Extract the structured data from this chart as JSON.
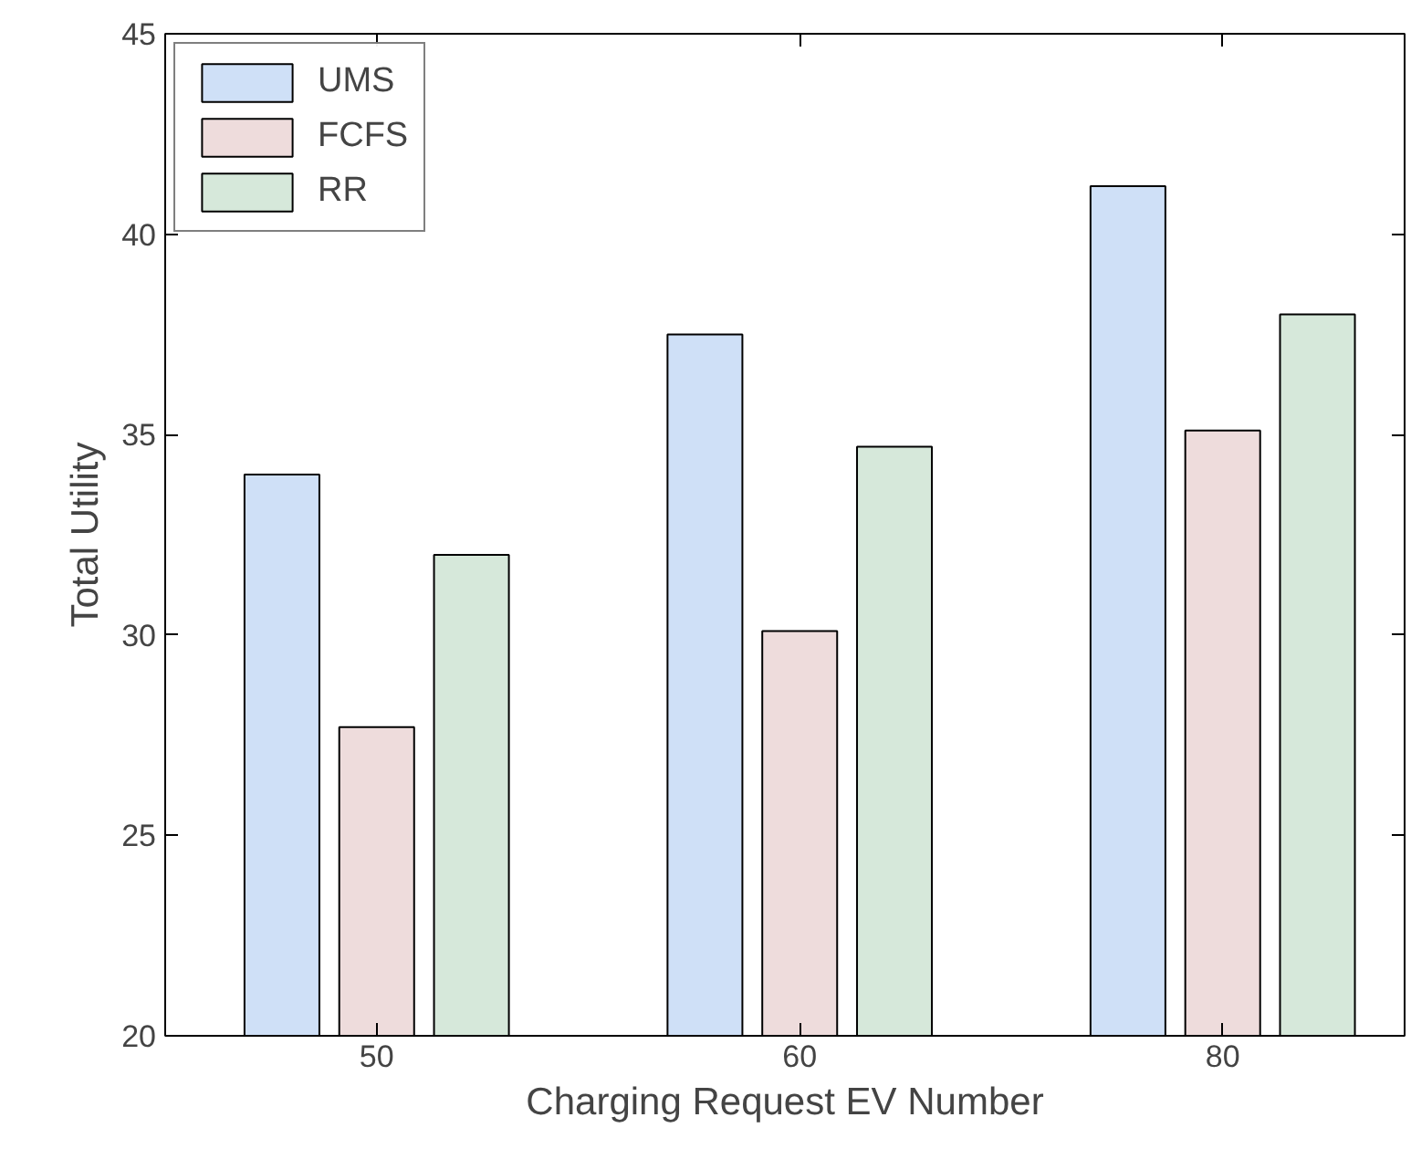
{
  "chart_data": {
    "type": "bar",
    "xlabel": "Charging Request EV Number",
    "ylabel": "Total Utility",
    "categories": [
      "50",
      "60",
      "80"
    ],
    "series": [
      {
        "name": "UMS",
        "color": "#cfe0f7",
        "values": [
          34.0,
          37.5,
          41.2
        ]
      },
      {
        "name": "FCFS",
        "color": "#eedcdc",
        "values": [
          27.7,
          30.1,
          35.1
        ]
      },
      {
        "name": "RR",
        "color": "#d6e8da",
        "values": [
          32.0,
          34.7,
          38.0
        ]
      }
    ],
    "ylim": [
      20,
      45
    ],
    "yticks": [
      20,
      25,
      30,
      35,
      40,
      45
    ],
    "grid": false,
    "legend": "top left"
  }
}
